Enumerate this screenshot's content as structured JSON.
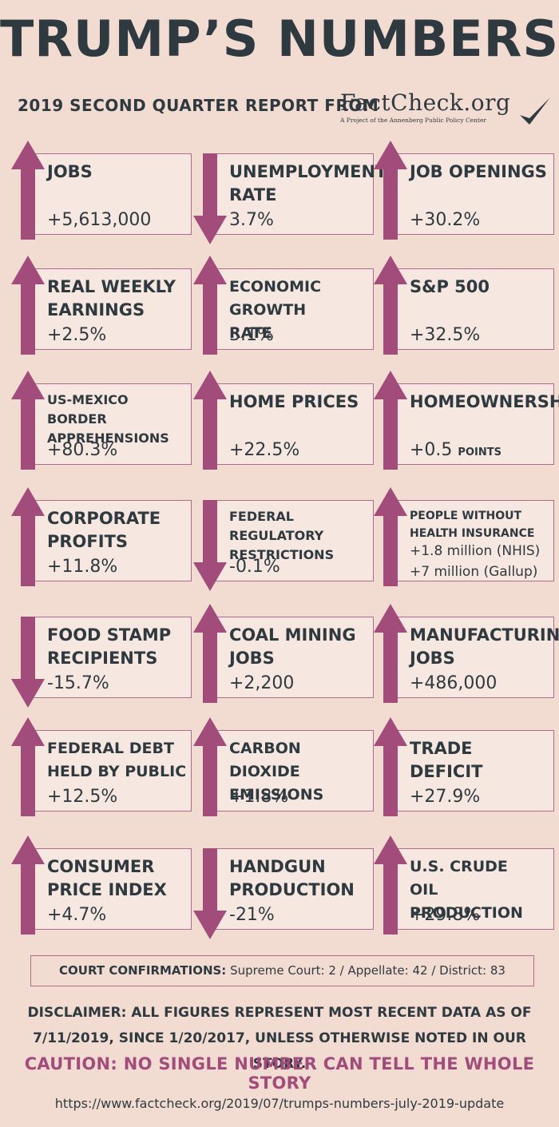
{
  "title": "TRUMP’S NUMBERS",
  "subtitle": "2019 SECOND QUARTER REPORT FROM",
  "logo": {
    "main": "FactCheck.org",
    "tagline": "A Project of the Annenberg Public Policy Center"
  },
  "colors": {
    "arrow": "#a24c7c",
    "background": "#f2dcd2",
    "box": "#f7e7e1",
    "text": "#2f3a40"
  },
  "tiles": [
    {
      "label": "JOBS",
      "value": "+5,613,000",
      "direction": "up"
    },
    {
      "label": "UNEMPLOYMENT\nRATE",
      "value": "3.7%",
      "direction": "down"
    },
    {
      "label": "JOB OPENINGS",
      "value": "+30.2%",
      "direction": "up"
    },
    {
      "label": "REAL WEEKLY\nEARNINGS",
      "value": "+2.5%",
      "direction": "up"
    },
    {
      "label": "ECONOMIC GROWTH\nRATE",
      "value": "3.1%",
      "direction": "up"
    },
    {
      "label": "S&P 500",
      "value": "+32.5%",
      "direction": "up"
    },
    {
      "label": "US-MEXICO BORDER\nAPPREHENSIONS",
      "value": "+80.3%",
      "direction": "up"
    },
    {
      "label": "HOME PRICES",
      "value": "+22.5%",
      "direction": "up"
    },
    {
      "label": "HOMEOWNERSHIP",
      "value": "+0.5",
      "value_suffix": "POINTS",
      "direction": "up"
    },
    {
      "label": "CORPORATE\nPROFITS",
      "value": "+11.8%",
      "direction": "up"
    },
    {
      "label": "FEDERAL REGULATORY\nRESTRICTIONS",
      "value": "-0.1%",
      "direction": "down"
    },
    {
      "label": "PEOPLE WITHOUT\nHEALTH INSURANCE",
      "value": "+1.8 million (NHIS)",
      "value2": "+7 million (Gallup)",
      "direction": "up"
    },
    {
      "label": "FOOD STAMP\nRECIPIENTS",
      "value": "-15.7%",
      "direction": "down"
    },
    {
      "label": "COAL MINING\nJOBS",
      "value": "+2,200",
      "direction": "up"
    },
    {
      "label": "MANUFACTURING\nJOBS",
      "value": "+486,000",
      "direction": "up"
    },
    {
      "label": "FEDERAL DEBT\nHELD BY PUBLIC",
      "value": "+12.5%",
      "direction": "up"
    },
    {
      "label": "CARBON DIOXIDE\nEMISSIONS",
      "value": "+1.8%",
      "direction": "up"
    },
    {
      "label": "TRADE DEFICIT",
      "value": "+27.9%",
      "direction": "up"
    },
    {
      "label": "CONSUMER\nPRICE INDEX",
      "value": "+4.7%",
      "direction": "up"
    },
    {
      "label": "HANDGUN\nPRODUCTION",
      "value": "-21%",
      "direction": "down"
    },
    {
      "label": "U.S. CRUDE\nOIL PRODUCTION",
      "value": "+29.8%",
      "direction": "up"
    }
  ],
  "court": {
    "label": "COURT CONFIRMATIONS:",
    "text": "Supreme Court: 2 / Appellate: 42 / District: 83"
  },
  "disclaimer_line1": "DISCLAIMER:  ALL FIGURES REPRESENT MOST RECENT DATA AS OF",
  "disclaimer_line2": "7/11/2019, SINCE 1/20/2017, UNLESS OTHERWISE NOTED IN OUR STORY.",
  "caution": "CAUTION: NO SINGLE NUMBER CAN TELL THE WHOLE STORY",
  "url": "https://www.factcheck.org/2019/07/trumps-numbers-july-2019-update"
}
